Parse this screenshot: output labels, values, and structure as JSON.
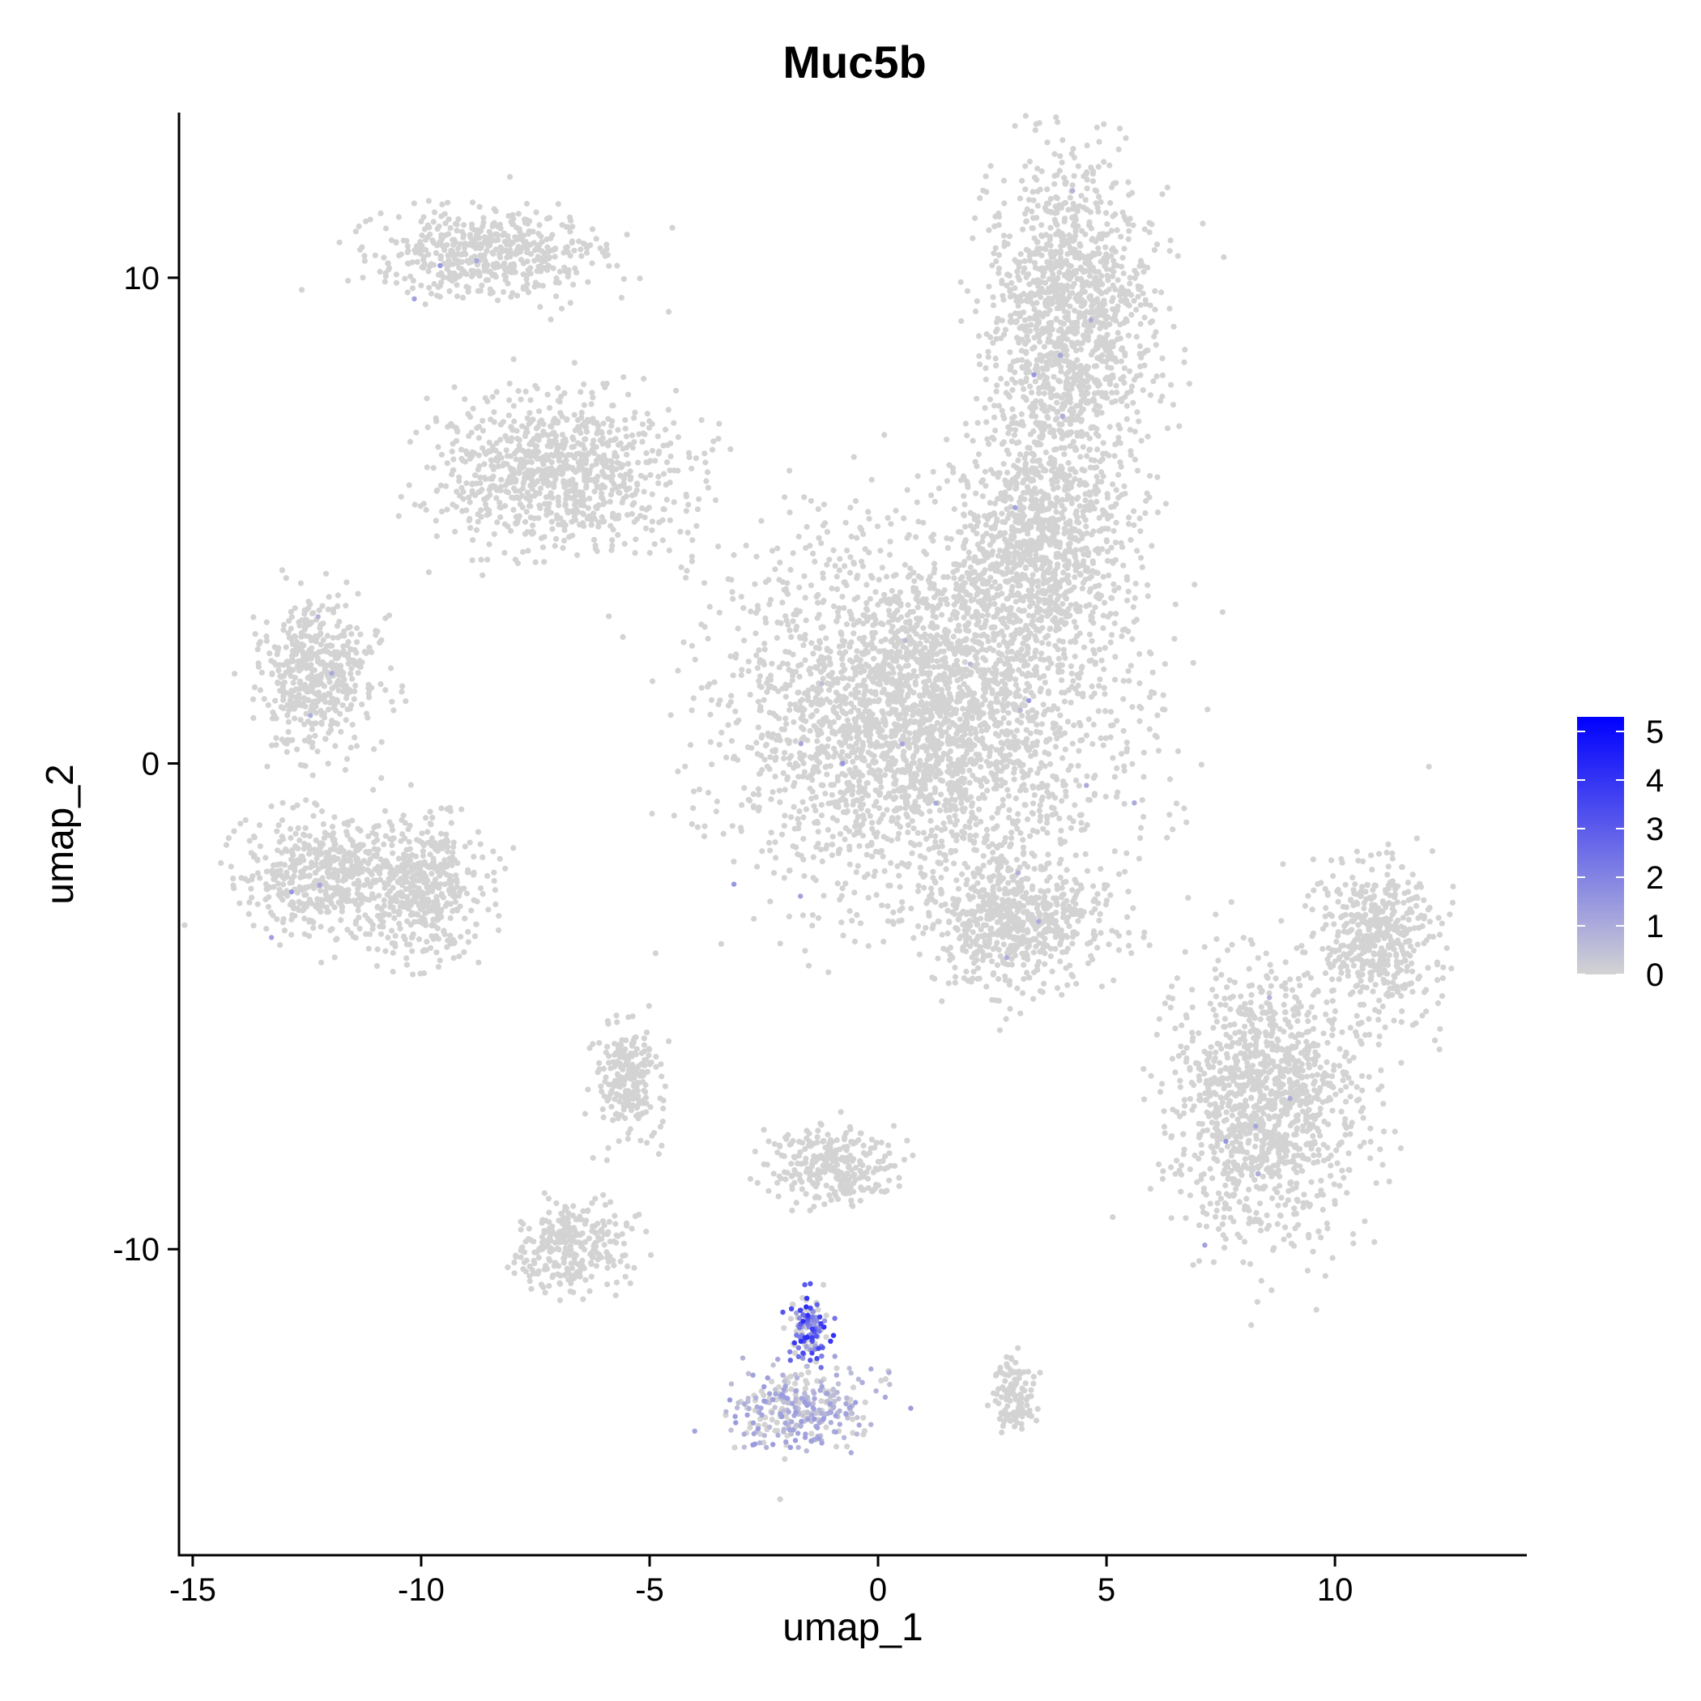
{
  "chart_data": {
    "type": "scatter",
    "title": "Muc5b",
    "xlabel": "umap_1",
    "ylabel": "umap_2",
    "xlim": [
      -15.3,
      14.2
    ],
    "ylim": [
      -16.3,
      13.4
    ],
    "xticks": [
      -15,
      -10,
      -5,
      0,
      5,
      10
    ],
    "yticks": [
      -10,
      0,
      10
    ],
    "xtick_labels": [
      "-15",
      "-10",
      "-5",
      "0",
      "5",
      "10"
    ],
    "ytick_labels": [
      "-10",
      "0",
      "10"
    ],
    "grid": false,
    "legend_position": "right",
    "color_scale": {
      "low_color": "#d3d3d3",
      "high_color": "#0000ff",
      "min": 0,
      "max": 5.3,
      "tick_values": [
        0,
        1,
        2,
        3,
        4,
        5
      ],
      "tick_labels": [
        "0",
        "1",
        "2",
        "3",
        "4",
        "5"
      ]
    },
    "clusters": [
      {
        "x": 1.0,
        "y": 1.0,
        "spread_x": 3.6,
        "spread_y": 3.2,
        "expression": 0
      },
      {
        "x": 4.2,
        "y": 9.0,
        "spread_x": 1.6,
        "spread_y": 3.2,
        "expression": 0
      },
      {
        "x": 3.5,
        "y": 4.5,
        "spread_x": 1.6,
        "spread_y": 2.0,
        "expression": 0
      },
      {
        "x": 3.0,
        "y": -3.3,
        "spread_x": 1.8,
        "spread_y": 1.2,
        "expression": 0
      },
      {
        "x": -8.5,
        "y": 10.5,
        "spread_x": 2.2,
        "spread_y": 0.8,
        "expression": 0
      },
      {
        "x": -7.0,
        "y": 6.0,
        "spread_x": 2.3,
        "spread_y": 1.4,
        "expression": 0
      },
      {
        "x": -12.3,
        "y": 1.8,
        "spread_x": 1.2,
        "spread_y": 1.4,
        "expression": 0
      },
      {
        "x": -12.0,
        "y": -2.3,
        "spread_x": 1.7,
        "spread_y": 1.1,
        "expression": 0
      },
      {
        "x": -9.8,
        "y": -2.6,
        "spread_x": 1.0,
        "spread_y": 1.3,
        "expression": 0
      },
      {
        "x": -5.5,
        "y": -6.5,
        "spread_x": 0.6,
        "spread_y": 1.1,
        "expression": 0
      },
      {
        "x": -1.0,
        "y": -8.3,
        "spread_x": 1.2,
        "spread_y": 0.7,
        "expression": 0
      },
      {
        "x": -6.7,
        "y": -10.0,
        "spread_x": 1.1,
        "spread_y": 0.8,
        "expression": 0
      },
      {
        "x": 8.5,
        "y": -7.0,
        "spread_x": 1.8,
        "spread_y": 2.5,
        "expression": 0
      },
      {
        "x": 10.9,
        "y": -3.6,
        "spread_x": 1.1,
        "spread_y": 1.5,
        "expression": 0
      },
      {
        "x": 3.0,
        "y": -13.0,
        "spread_x": 0.4,
        "spread_y": 0.6,
        "expression": 0
      },
      {
        "x": -1.7,
        "y": -13.3,
        "spread_x": 1.4,
        "spread_y": 0.7,
        "expression": 1.2
      },
      {
        "x": -1.5,
        "y": -11.7,
        "spread_x": 0.4,
        "spread_y": 0.7,
        "expression": 3.5
      }
    ]
  }
}
